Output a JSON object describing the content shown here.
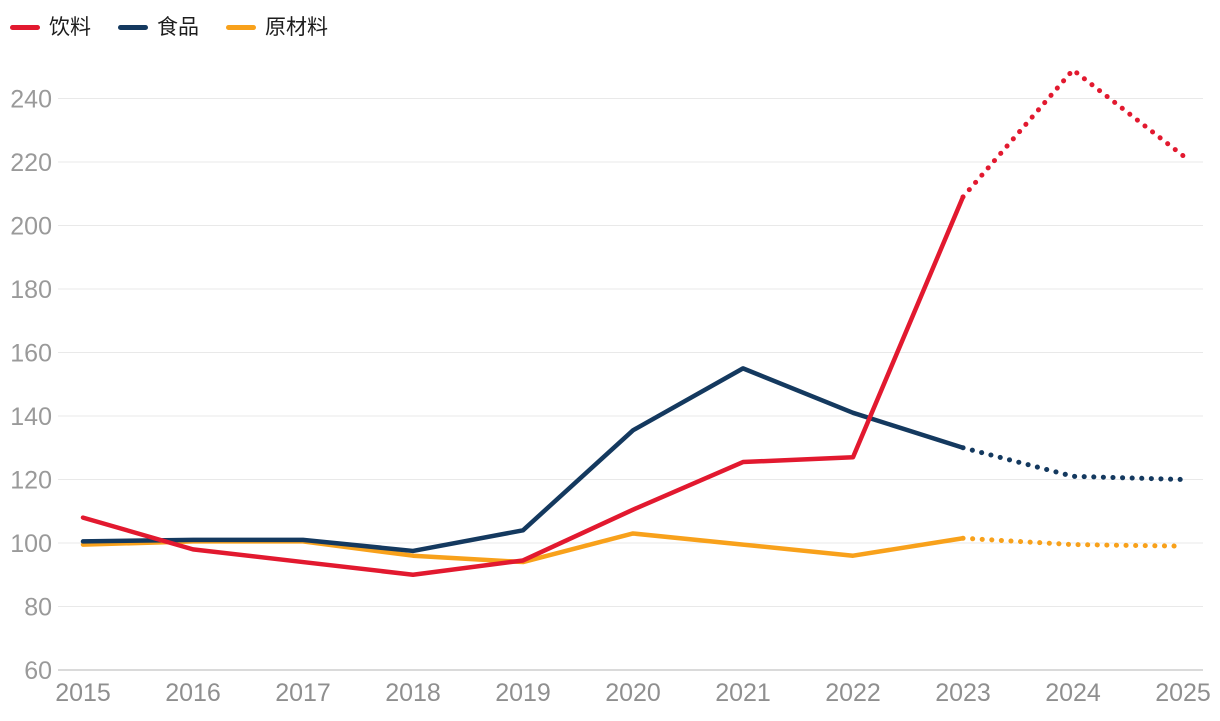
{
  "legend": {
    "items": [
      {
        "label": "饮料",
        "color": "#e2192f"
      },
      {
        "label": "食品",
        "color": "#14395f"
      },
      {
        "label": "原材料",
        "color": "#f8a11b"
      }
    ],
    "position": "top-left"
  },
  "chart_data": {
    "type": "line",
    "title": "",
    "xlabel": "",
    "ylabel": "",
    "x": [
      2015,
      2016,
      2017,
      2018,
      2019,
      2020,
      2021,
      2022,
      2023,
      2024,
      2025
    ],
    "series": [
      {
        "name": "饮料",
        "color": "#e2192f",
        "values": [
          108,
          98,
          94,
          90,
          94.5,
          110.5,
          125.5,
          127,
          209,
          249,
          222
        ],
        "dotted_from_year": 2023
      },
      {
        "name": "食品",
        "color": "#14395f",
        "values": [
          100.5,
          101,
          101,
          97.5,
          104,
          135.5,
          155,
          141,
          130,
          121,
          120
        ],
        "dotted_from_year": 2023
      },
      {
        "name": "原材料",
        "color": "#f8a11b",
        "values": [
          99.5,
          100.5,
          100.5,
          96,
          94,
          103,
          99.5,
          96,
          101.5,
          99.5,
          99
        ],
        "dotted_from_year": 2023
      }
    ],
    "yticks": [
      60,
      80,
      100,
      120,
      140,
      160,
      180,
      200,
      220,
      240
    ],
    "xticks": [
      "2015",
      "2016",
      "2017",
      "2018",
      "2019",
      "2020",
      "2021",
      "2022",
      "2023",
      "2024",
      "2025"
    ],
    "ylim": [
      60,
      252
    ],
    "grid": true,
    "legend_position": "top-left",
    "style": {
      "gridline_color": "#e9e9e9",
      "baseline_color": "#b5b5b5",
      "ytick_color": "#9a9a9a",
      "xtick_color": "#8f8f8f",
      "background": "#ffffff"
    }
  }
}
